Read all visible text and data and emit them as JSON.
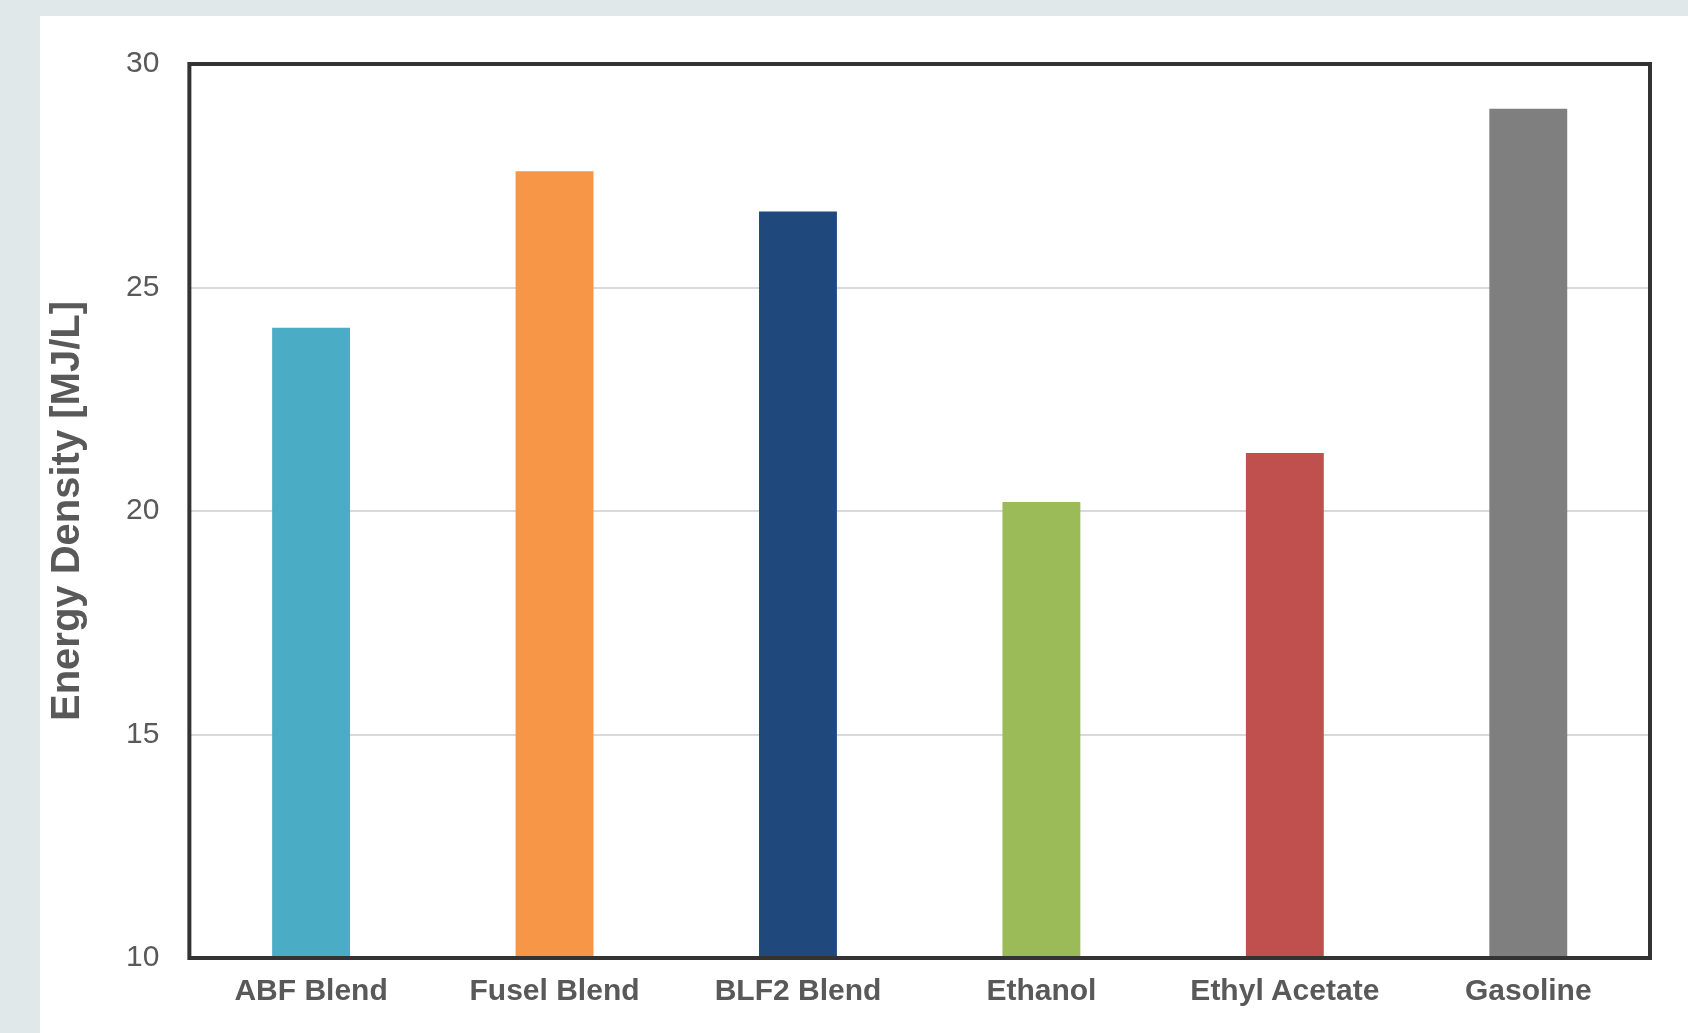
{
  "chart_data": {
    "type": "bar",
    "ylabel": "Energy Density [MJ/L]",
    "categories": [
      "ABF Blend",
      "Fusel Blend",
      "BLF2 Blend",
      "Ethanol",
      "Ethyl Acetate",
      "Gasoline"
    ],
    "values": [
      24.1,
      27.6,
      26.7,
      20.2,
      21.3,
      29.0
    ],
    "colors": [
      "#4bacc6",
      "#f79646",
      "#1f497d",
      "#9bbb59",
      "#c0504d",
      "#7f7f7f"
    ],
    "ylim": [
      10,
      30
    ],
    "yticks": [
      10,
      15,
      20,
      25,
      30
    ],
    "grid": "y",
    "legend": false
  }
}
